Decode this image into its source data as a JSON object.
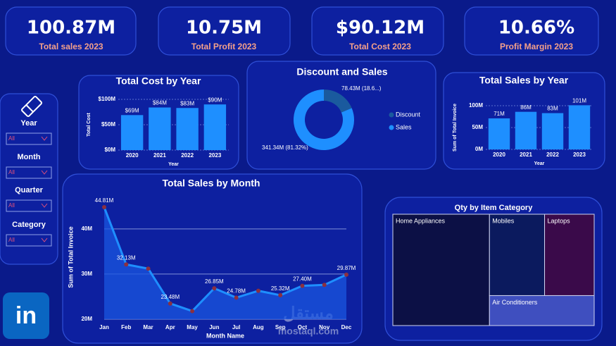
{
  "kpis": [
    {
      "value": "100.87M",
      "label": "Total sales 2023"
    },
    {
      "value": "10.75M",
      "label": "Total Profit 2023"
    },
    {
      "value": "$90.12M",
      "label": "Total Cost 2023"
    },
    {
      "value": "10.66%",
      "label": "Profit Margin 2023"
    }
  ],
  "filters": [
    {
      "label": "Year",
      "selection": "All"
    },
    {
      "label": "Month",
      "selection": "All"
    },
    {
      "label": "Quarter",
      "selection": "All"
    },
    {
      "label": "Category",
      "selection": "All"
    }
  ],
  "logo": "in",
  "watermark": {
    "arabic": "مستقل",
    "latin": "mostaql.com"
  },
  "chart_data": [
    {
      "type": "bar",
      "title": "Total Cost by Year",
      "x_label": "Year",
      "y_label": "Total Cost",
      "categories": [
        "2020",
        "2021",
        "2022",
        "2023"
      ],
      "values": [
        69,
        84,
        83,
        90
      ],
      "value_labels": [
        "$69M",
        "$84M",
        "$83M",
        "$90M"
      ],
      "color": "#1e8fff",
      "ylim": [
        0,
        100
      ],
      "yticks": [
        {
          "value": 0,
          "label": "$0M"
        },
        {
          "value": 50,
          "label": "$50M"
        },
        {
          "value": 100,
          "label": "$100M"
        }
      ],
      "grid": true
    },
    {
      "type": "pie",
      "title": "Discount and Sales",
      "categories": [
        "Discount",
        "Sales"
      ],
      "values": [
        78.43,
        341.34
      ],
      "value_labels": [
        "78.43M (18.6...)",
        "341.34M (81.32%)"
      ],
      "colors": [
        "#1a5a9e",
        "#1e8fff"
      ],
      "donut": true,
      "legend": "right"
    },
    {
      "type": "bar",
      "title": "Total Sales by Year",
      "x_label": "Year",
      "y_label": "Sum of Total Invoice",
      "categories": [
        "2020",
        "2021",
        "2022",
        "2023"
      ],
      "values": [
        71,
        86,
        83,
        101
      ],
      "value_labels": [
        "71M",
        "86M",
        "83M",
        "101M"
      ],
      "color": "#1e8fff",
      "ylim": [
        0,
        100
      ],
      "yticks": [
        {
          "value": 0,
          "label": "0M"
        },
        {
          "value": 50,
          "label": "50M"
        },
        {
          "value": 100,
          "label": "100M"
        }
      ],
      "grid": true
    },
    {
      "type": "area",
      "title": "Total Sales by Month",
      "x_label": "Month Name",
      "y_label": "Sum of Total Invoice",
      "categories": [
        "Jan",
        "Feb",
        "Mar",
        "Apr",
        "May",
        "Jun",
        "Jul",
        "Aug",
        "Sep",
        "Oct",
        "Nov",
        "Dec"
      ],
      "values": [
        44.81,
        32.13,
        31.2,
        23.48,
        21.8,
        26.85,
        24.78,
        26.3,
        25.32,
        27.4,
        27.6,
        29.87
      ],
      "value_labels": [
        "44.81M",
        "32.13M",
        null,
        "23.48M",
        null,
        "26.85M",
        "24.78M",
        null,
        "25.32M",
        "27.40M",
        null,
        "29.87M"
      ],
      "color": "#1e8fff",
      "marker_color": "#8b3040",
      "ylim": [
        20,
        47
      ],
      "yticks": [
        {
          "value": 20,
          "label": "20M"
        },
        {
          "value": 30,
          "label": "30M"
        },
        {
          "value": 40,
          "label": "40M"
        }
      ],
      "grid": true
    },
    {
      "type": "treemap",
      "title": "Qty by Item Category",
      "categories": [
        "Home Appliances",
        "Mobiles",
        "Laptops",
        "Air Conditioners"
      ],
      "values": [
        48,
        20,
        18,
        14
      ],
      "colors": [
        "#0c1045",
        "#0b1a5e",
        "#3a0a4a",
        "#3f4fbf"
      ]
    }
  ]
}
